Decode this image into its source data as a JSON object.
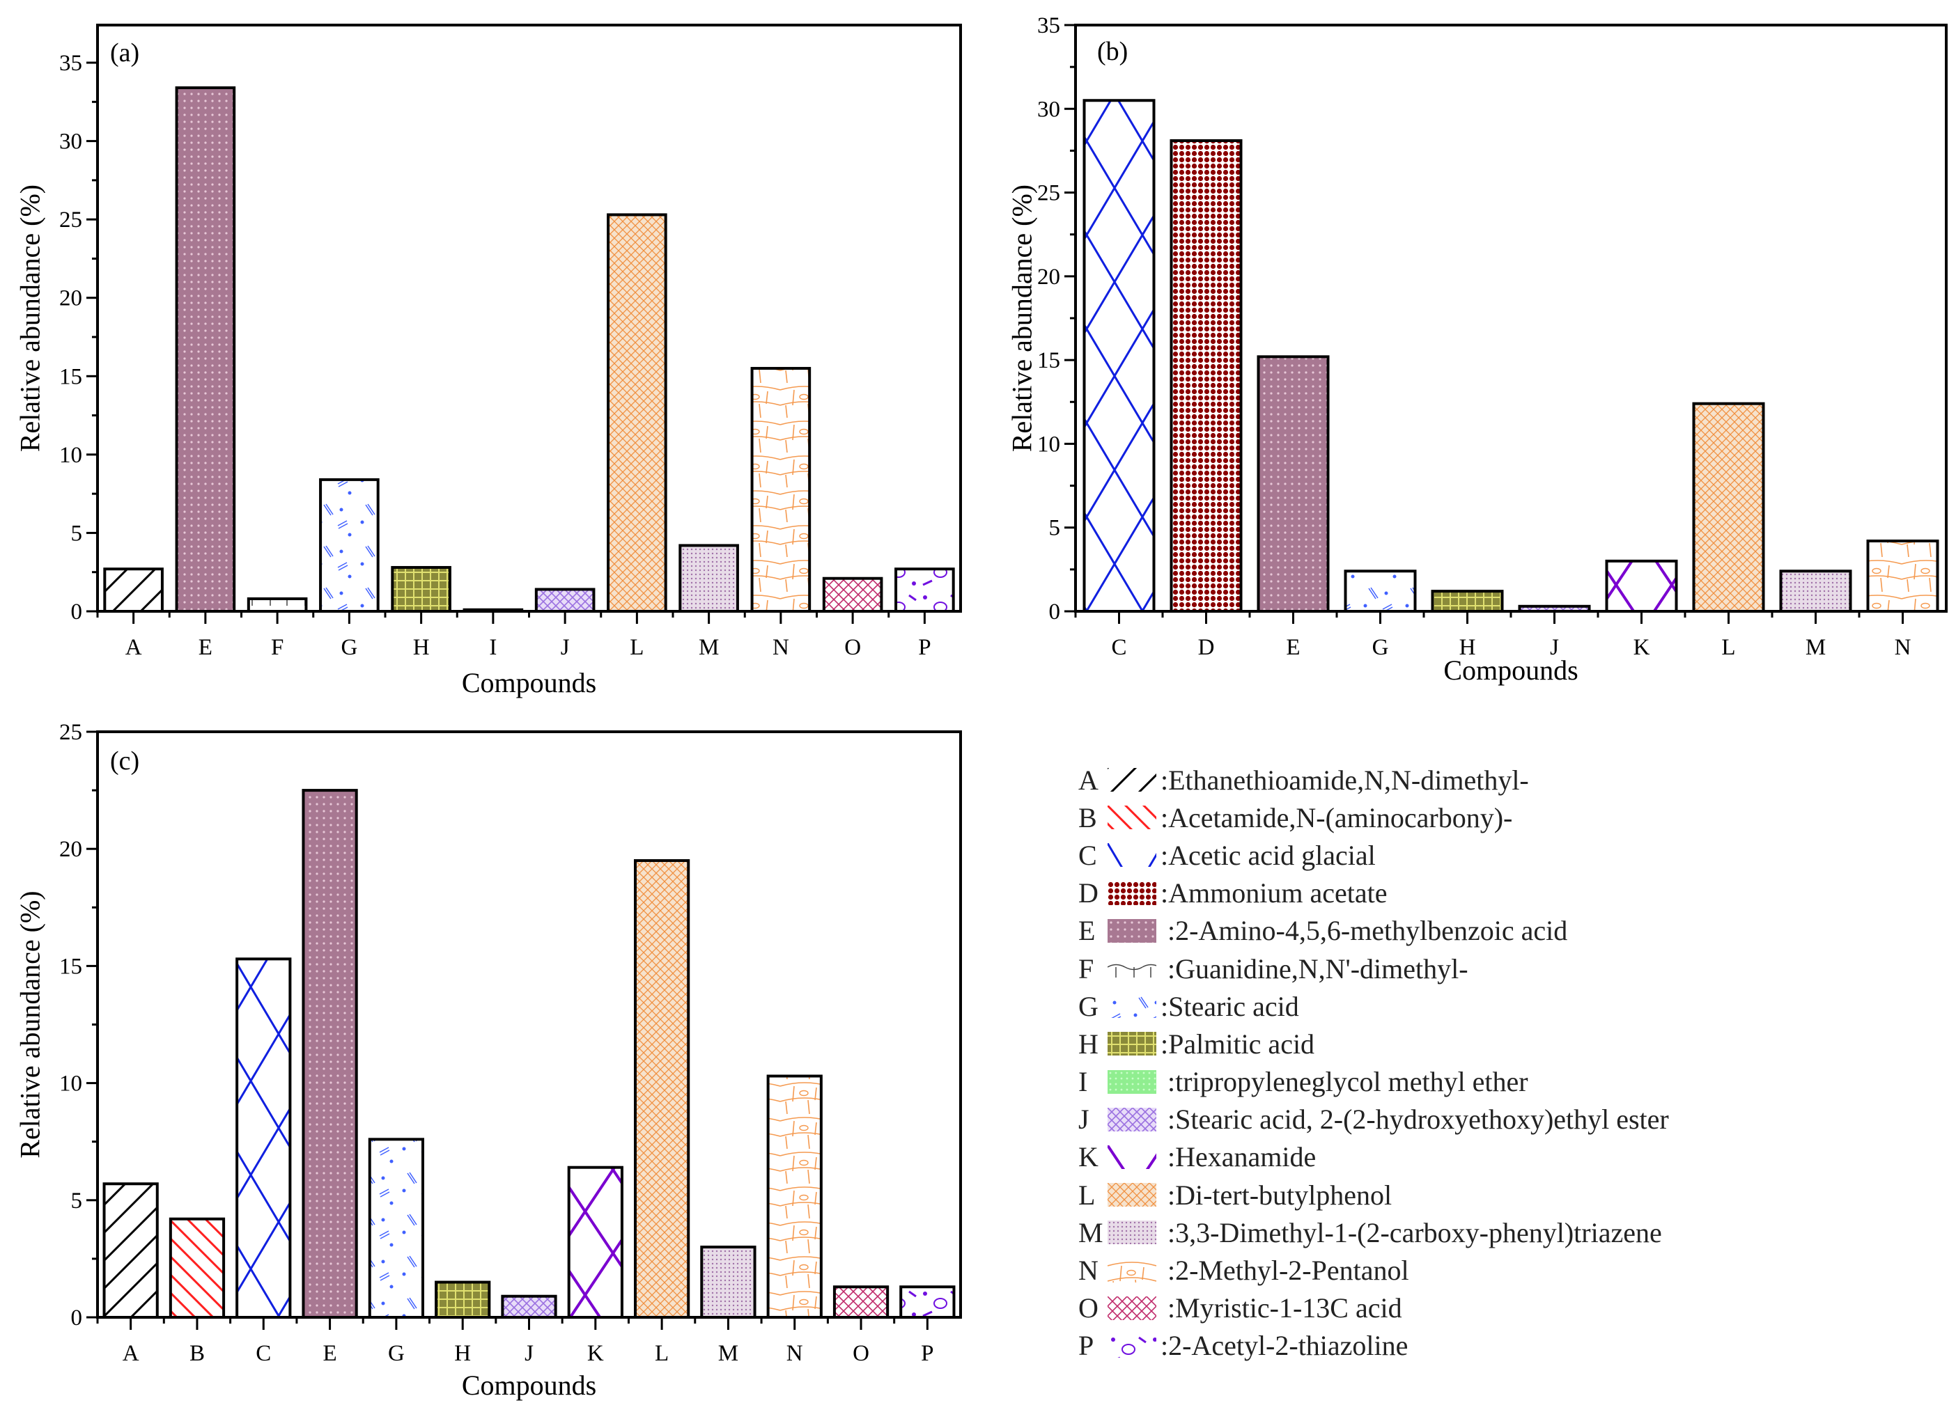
{
  "chart_data": [
    {
      "type": "bar",
      "panel_label": "(a)",
      "xlabel": "Compounds",
      "ylabel": "Relative abundance (%)",
      "ylim": [
        0,
        37.4
      ],
      "yticks": [
        0,
        5,
        10,
        15,
        20,
        25,
        30,
        35
      ],
      "categories": [
        "A",
        "E",
        "F",
        "G",
        "H",
        "I",
        "J",
        "L",
        "M",
        "N",
        "O",
        "P"
      ],
      "values": [
        2.7,
        33.4,
        0.8,
        8.4,
        2.8,
        0.1,
        1.4,
        25.3,
        4.2,
        15.5,
        2.1,
        2.7
      ],
      "grid": false
    },
    {
      "type": "bar",
      "panel_label": "(b)",
      "xlabel": "Compounds",
      "ylabel": "Relative abundance (%)",
      "ylim": [
        0,
        35
      ],
      "yticks": [
        0,
        5,
        10,
        15,
        20,
        25,
        30,
        35
      ],
      "categories": [
        "C",
        "D",
        "E",
        "G",
        "H",
        "J",
        "K",
        "L",
        "M",
        "N"
      ],
      "values": [
        30.5,
        28.1,
        15.2,
        2.4,
        1.2,
        0.3,
        3.0,
        12.4,
        2.4,
        4.2
      ],
      "grid": false
    },
    {
      "type": "bar",
      "panel_label": "(c)",
      "xlabel": "Compounds",
      "ylabel": "Relative abundance  (%)",
      "ylim": [
        0,
        25
      ],
      "yticks": [
        0,
        5,
        10,
        15,
        20,
        25
      ],
      "categories": [
        "A",
        "B",
        "C",
        "E",
        "G",
        "H",
        "J",
        "K",
        "L",
        "M",
        "N",
        "O",
        "P"
      ],
      "values": [
        5.7,
        4.2,
        15.3,
        22.5,
        7.6,
        1.5,
        0.9,
        6.4,
        19.5,
        3.0,
        10.3,
        1.3,
        1.3
      ],
      "grid": false
    }
  ],
  "legend": [
    {
      "key": "A",
      "label": ":Ethanethioamide,N,N-dimethyl-"
    },
    {
      "key": "B",
      "label": ":Acetamide,N-(aminocarbony)-"
    },
    {
      "key": "C",
      "label": ":Acetic acid glacial"
    },
    {
      "key": "D",
      "label": ":Ammonium acetate"
    },
    {
      "key": "E",
      "label": " :2-Amino-4,5,6-methylbenzoic acid"
    },
    {
      "key": "F",
      "label": " :Guanidine,N,N'-dimethyl-"
    },
    {
      "key": "G",
      "label": ":Stearic acid"
    },
    {
      "key": "H",
      "label": ":Palmitic acid"
    },
    {
      "key": "I",
      "label": " :tripropyleneglycol methyl ether"
    },
    {
      "key": "J",
      "label": " :Stearic acid, 2-(2-hydroxyethoxy)ethyl ester"
    },
    {
      "key": "K",
      "label": " :Hexanamide"
    },
    {
      "key": "L",
      "label": " :Di-tert-butylphenol"
    },
    {
      "key": "M",
      "label": " :3,3-Dimethyl-1-(2-carboxy-phenyl)triazene"
    },
    {
      "key": "N",
      "label": " :2-Methyl-2-Pentanol"
    },
    {
      "key": "O",
      "label": " :Myristic-1-13C acid"
    },
    {
      "key": "P",
      "label": ":2-Acetyl-2-thiazoline"
    }
  ],
  "colors": {
    "A": "#000000",
    "B": "#ff2020",
    "C": "#1020e0",
    "D": "#8b0000",
    "E": "#a8708f",
    "F": "#808080",
    "G": "#4060ff",
    "H": "#8a8a3a",
    "I": "#90ee90",
    "J": "#9a70e0",
    "K": "#7a00d0",
    "L": "#f09040",
    "M": "#a070a8",
    "N": "#f59a50",
    "O": "#c02a6a",
    "P": "#7010e0"
  }
}
